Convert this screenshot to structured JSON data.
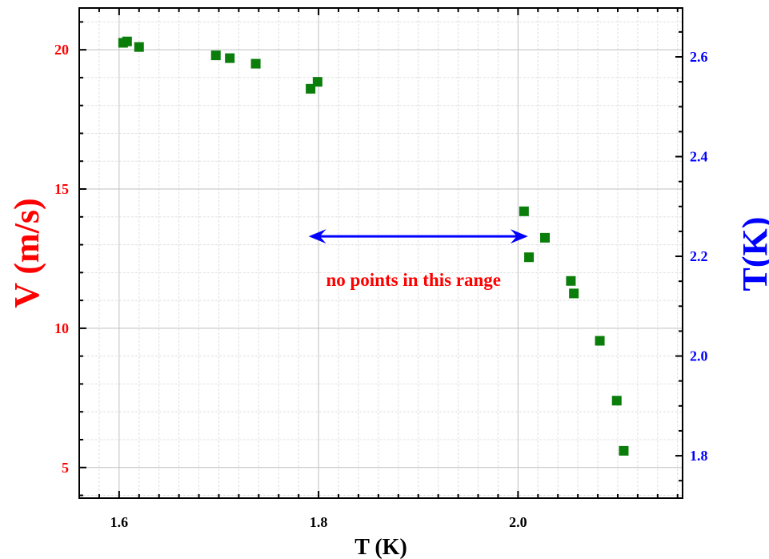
{
  "chart_data": {
    "type": "scatter",
    "xlabel": "T (K)",
    "ylabel": "V (m/s)",
    "ylabel_right": "T(K)",
    "xlim": [
      1.56,
      2.165
    ],
    "ylim": [
      3.9,
      21.5
    ],
    "ylim_right": [
      1.715,
      2.698
    ],
    "x_ticks": [
      "1.6",
      "1.8",
      "2.0"
    ],
    "x_tick_values": [
      1.6,
      1.8,
      2.0
    ],
    "y_ticks": [
      "5",
      "10",
      "15",
      "20"
    ],
    "y_tick_values": [
      5,
      10,
      15,
      20
    ],
    "y_right_ticks": [
      "1.8",
      "2.0",
      "2.2",
      "2.4",
      "2.6"
    ],
    "y_right_tick_values": [
      1.8,
      2.0,
      2.2,
      2.4,
      2.6
    ],
    "grid": true,
    "marker": "square",
    "series": [
      {
        "points": [
          {
            "x": 1.604,
            "y": 20.25
          },
          {
            "x": 1.608,
            "y": 20.3
          },
          {
            "x": 1.62,
            "y": 20.1
          },
          {
            "x": 1.697,
            "y": 19.8
          },
          {
            "x": 1.711,
            "y": 19.7
          },
          {
            "x": 1.737,
            "y": 19.5
          },
          {
            "x": 1.792,
            "y": 18.6
          },
          {
            "x": 1.799,
            "y": 18.85
          },
          {
            "x": 2.006,
            "y": 14.2
          },
          {
            "x": 2.011,
            "y": 12.55
          },
          {
            "x": 2.027,
            "y": 13.25
          },
          {
            "x": 2.053,
            "y": 11.7
          },
          {
            "x": 2.056,
            "y": 11.25
          },
          {
            "x": 2.082,
            "y": 9.55
          },
          {
            "x": 2.099,
            "y": 7.4
          },
          {
            "x": 2.106,
            "y": 5.6
          }
        ]
      }
    ],
    "annotation": {
      "text": "no points in this range",
      "arrow_from_x": 1.79,
      "arrow_to_x": 2.01,
      "arrow_y": 13.3
    }
  },
  "colors": {
    "marker": "#0a7d0a",
    "left_axis": "#ff0000",
    "right_axis": "#0000ff",
    "annotation_text": "#ff0000",
    "arrow": "#0000ff",
    "grid_major": "#bfbfbf",
    "grid_minor": "#e0e0e0"
  }
}
